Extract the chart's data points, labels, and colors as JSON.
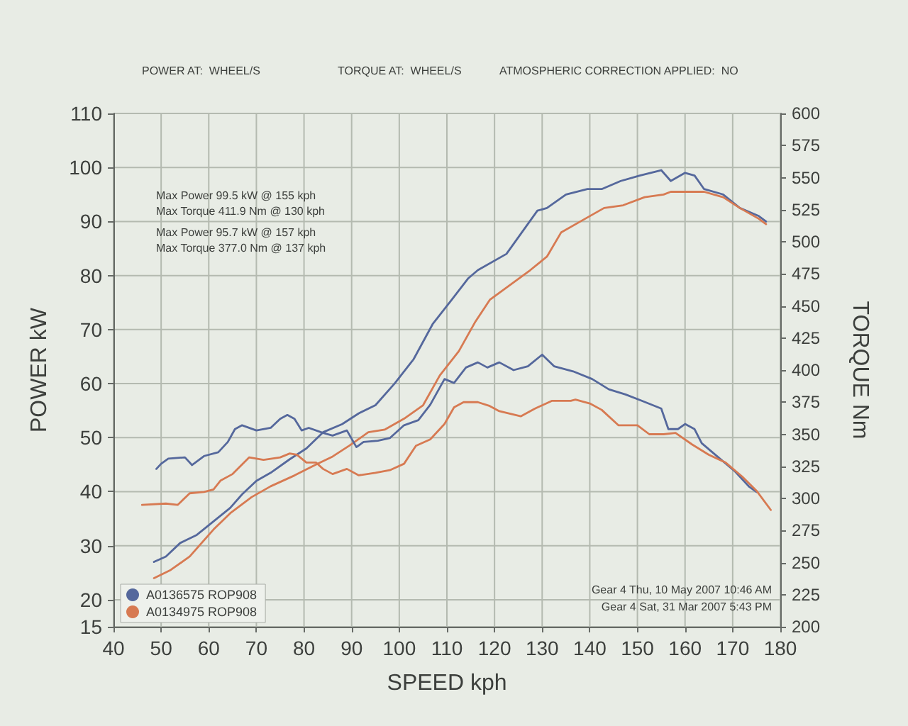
{
  "chart_data": {
    "type": "line",
    "xlabel": "SPEED kph",
    "ylabel": "POWER kW",
    "y2label": "TORQUE Nm",
    "annotations": [
      "POWER AT:  WHEEL/S",
      "TORQUE AT:  WHEEL/S",
      "ATMOSPHERIC CORRECTION APPLIED:  NO",
      "Max Power 99.5 kW @ 155 kph",
      "Max Torque 411.9 Nm @ 130 kph",
      "Max Power 95.7 kW @ 157 kph",
      "Max Torque 377.0 Nm @ 137 kph",
      "Gear 4 Thu, 10 May 2007 10:46 AM",
      "Gear 4 Sat, 31 Mar 2007 5:43 PM"
    ],
    "xlim": [
      40,
      180
    ],
    "xticks": [
      40,
      50,
      60,
      70,
      80,
      90,
      100,
      110,
      120,
      130,
      140,
      150,
      160,
      170,
      180
    ],
    "ylim": [
      15,
      110
    ],
    "yticks": [
      15,
      20,
      30,
      40,
      50,
      60,
      70,
      80,
      90,
      100,
      110
    ],
    "y2lim": [
      200,
      600
    ],
    "y2ticks": [
      200,
      225,
      250,
      275,
      300,
      325,
      350,
      375,
      400,
      425,
      450,
      475,
      500,
      525,
      550,
      575,
      600
    ],
    "grid": true,
    "legend": "bottom left",
    "marker": "none",
    "series": [
      {
        "name": "A0136575 ROP908",
        "color": "#55689c",
        "x": [
          48.5,
          51,
          54,
          57.5,
          61,
          64.5,
          67,
          70,
          73,
          77,
          80.5,
          84,
          88,
          91.5,
          95,
          99,
          103,
          107,
          111,
          114.5,
          116.5,
          122.5,
          129,
          131,
          135,
          139.5,
          142.5,
          146.5,
          150.5,
          155,
          157,
          160,
          162,
          164,
          168,
          171.5,
          175.5,
          177
        ],
        "values": [
          27,
          28,
          30.5,
          32,
          34.5,
          37,
          39.5,
          42,
          43.5,
          46,
          48,
          51,
          52.5,
          54.5,
          56,
          60,
          64.5,
          71,
          75.5,
          79.5,
          81,
          84,
          92,
          92.5,
          95,
          96,
          96,
          97.5,
          98.5,
          99.5,
          97.5,
          99,
          98.5,
          96,
          95,
          92.5,
          91,
          90
        ]
      },
      {
        "name": "A0134975 ROP908",
        "color": "#d77a52",
        "x": [
          48.5,
          52,
          56,
          61,
          64.5,
          69,
          73,
          78,
          82.5,
          86,
          89.5,
          93.5,
          97,
          101,
          105,
          108.5,
          112.5,
          116,
          119,
          127.5,
          131,
          134,
          139,
          143,
          147,
          151.5,
          155.5,
          157,
          160,
          164,
          168,
          171.5,
          175.5,
          177
        ],
        "values": [
          24,
          25.5,
          28,
          33,
          36,
          39,
          41,
          43,
          45,
          46.5,
          48.5,
          51,
          51.5,
          53.5,
          56,
          61.5,
          66,
          71.5,
          75.5,
          81,
          83.5,
          88,
          90.5,
          92.5,
          93,
          94.5,
          95,
          95.5,
          95.5,
          95.5,
          94.5,
          92.5,
          90.5,
          89.5
        ]
      },
      {
        "color": "#55689c",
        "axis": "y2",
        "x": [
          49,
          50,
          51.5,
          55,
          56.5,
          59,
          62,
          64,
          65.5,
          67,
          70,
          73,
          75,
          76.5,
          78,
          79.5,
          81,
          84,
          86,
          89,
          91,
          92.5,
          95.5,
          98,
          101,
          104,
          106.5,
          109.5,
          111.5,
          114,
          116.5,
          118.5,
          121,
          124,
          127,
          130,
          132.5,
          136.5,
          140.5,
          144,
          147.5,
          151,
          155,
          156.5,
          158.5,
          160,
          162,
          163.5,
          167,
          170.5,
          173.5,
          175
        ],
        "values": [
          323,
          327,
          331,
          332,
          326,
          333,
          336,
          344,
          354,
          357,
          353,
          355,
          362,
          365,
          362,
          353,
          355,
          351,
          349,
          353,
          340,
          344,
          345,
          347,
          357,
          361,
          373,
          393,
          390,
          402,
          406,
          402,
          406,
          400,
          403,
          412,
          403,
          399,
          393,
          385,
          381,
          376,
          370,
          354,
          354,
          358,
          354,
          343,
          332,
          321,
          309,
          305
        ]
      },
      {
        "color": "#d77a52",
        "axis": "y2",
        "x": [
          46,
          51,
          53.5,
          56,
          59,
          61,
          62.5,
          65,
          68.5,
          71.5,
          75,
          77,
          78.5,
          80.5,
          82.5,
          84,
          86,
          89,
          91.5,
          95,
          98,
          101,
          103.5,
          106.5,
          109.5,
          111.5,
          113.5,
          116.5,
          119,
          121,
          125.5,
          128.5,
          132,
          136,
          137,
          140,
          142.5,
          146,
          150,
          152.5,
          155.5,
          158,
          161.5,
          165,
          168.5,
          172,
          175,
          178
        ],
        "values": [
          295,
          296,
          295,
          304,
          305,
          307,
          314,
          319,
          332,
          330,
          332,
          335,
          334,
          328,
          328,
          323,
          319,
          323,
          318,
          320,
          322,
          327,
          341,
          346,
          358,
          371,
          375,
          375,
          372,
          368,
          364,
          370,
          376,
          376,
          377,
          374,
          369,
          357,
          357,
          350,
          350,
          351,
          342,
          334,
          328,
          317,
          306,
          291
        ]
      }
    ]
  }
}
